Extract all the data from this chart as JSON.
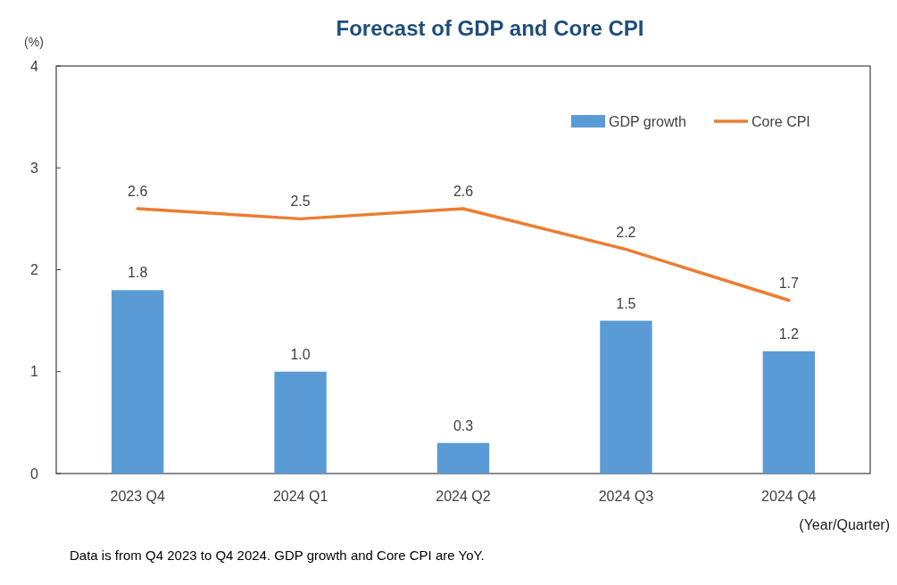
{
  "chart_data": {
    "type": "bar",
    "title": "Forecast of GDP and Core CPI",
    "ylabel": "(%)",
    "xlabel": "(Year/Quarter)",
    "categories": [
      "2023 Q4",
      "2024 Q1",
      "2024 Q2",
      "2024 Q3",
      "2024 Q4"
    ],
    "series": [
      {
        "name": "GDP growth",
        "color": "#5b9bd5",
        "values": [
          1.8,
          1.0,
          0.3,
          1.5,
          1.2
        ],
        "value_labels": [
          "1.8",
          "1.0",
          "0.3",
          "1.5",
          "1.2"
        ]
      },
      {
        "name": "Core CPI",
        "type": "line",
        "color": "#ed7d31",
        "values": [
          2.6,
          2.5,
          2.6,
          2.2,
          1.7
        ],
        "value_labels": [
          "2.6",
          "2.5",
          "2.6",
          "2.2",
          "1.7"
        ]
      }
    ],
    "ylim": [
      0,
      4
    ],
    "yticks": [
      0,
      1,
      2,
      3,
      4
    ],
    "grid": false,
    "legend": "top right",
    "marker": "none",
    "line_style": "solid",
    "annotations": [
      "Data is from Q4 2023 to Q4 2024. GDP growth and Core CPI are YoY."
    ]
  }
}
